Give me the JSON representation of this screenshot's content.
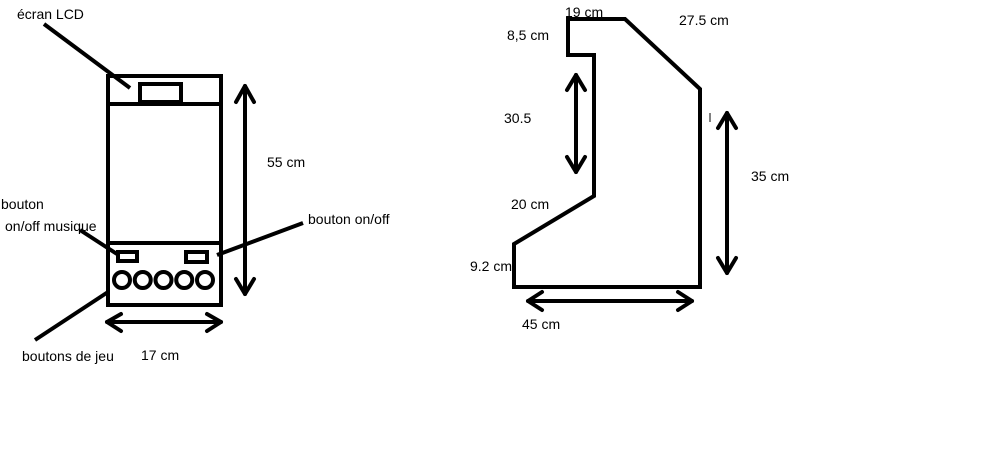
{
  "front_view": {
    "labels": {
      "lcd_screen": "écran LCD",
      "height": "55 cm",
      "music_button_line1": "bouton",
      "music_button_line2": "on/off musique",
      "power_button": "bouton on/off",
      "game_buttons": "boutons de jeu",
      "width": "17 cm"
    },
    "game_button_count": 5
  },
  "side_view": {
    "labels": {
      "top_width": "19 cm",
      "top_height": "8,5 cm",
      "slope_top": "27.5 cm",
      "inner_height": "30.5",
      "back_height": "35 cm",
      "slope_bottom": "20 cm",
      "front_height": "9.2 cm",
      "base_width": "45 cm"
    }
  }
}
